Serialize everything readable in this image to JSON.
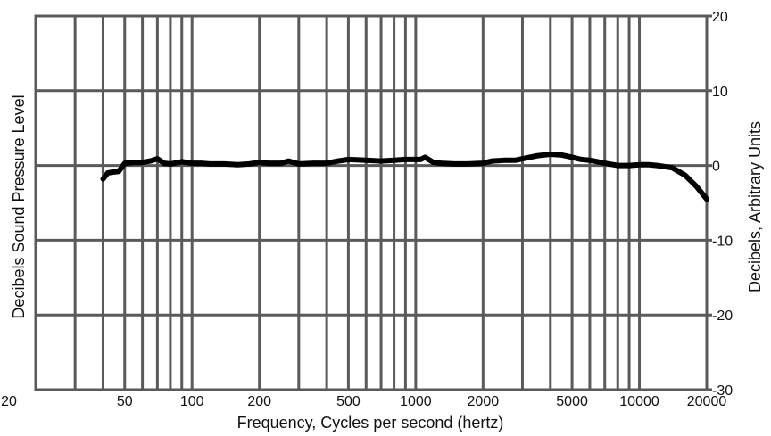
{
  "chart_data": {
    "type": "line",
    "title": "",
    "xlabel": "Frequency,  Cycles per second (hertz)",
    "ylabel_left": "Decibels Sound Pressure Level",
    "ylabel_right": "Decibels, Arbitrary Units",
    "x_scale": "log",
    "xlim": [
      20,
      20000
    ],
    "ylim": [
      -30,
      20
    ],
    "x_ticks": [
      {
        "value": 20,
        "label": "20"
      },
      {
        "value": 50,
        "label": "50"
      },
      {
        "value": 100,
        "label": "100"
      },
      {
        "value": 200,
        "label": "200"
      },
      {
        "value": 500,
        "label": "500"
      },
      {
        "value": 1000,
        "label": "1000"
      },
      {
        "value": 2000,
        "label": "2000"
      },
      {
        "value": 5000,
        "label": "5000"
      },
      {
        "value": 10000,
        "label": "10000"
      },
      {
        "value": 20000,
        "label": "20000"
      }
    ],
    "y_ticks": [
      {
        "value": 20,
        "label": "20"
      },
      {
        "value": 10,
        "label": "10"
      },
      {
        "value": 0,
        "label": "0"
      },
      {
        "value": -10,
        "label": "-10"
      },
      {
        "value": -20,
        "label": "-20"
      },
      {
        "value": -30,
        "label": "-30"
      }
    ],
    "grid": true,
    "grid_x_lines": [
      20,
      30,
      40,
      50,
      60,
      70,
      80,
      90,
      100,
      200,
      300,
      400,
      500,
      600,
      700,
      800,
      900,
      1000,
      2000,
      3000,
      4000,
      5000,
      6000,
      7000,
      8000,
      9000,
      10000,
      20000
    ],
    "grid_y_lines": [
      20,
      10,
      0,
      -10,
      -20,
      -30
    ],
    "series": [
      {
        "color": "#000000",
        "x": [
          40,
          42,
          44,
          47,
          50,
          55,
          60,
          65,
          70,
          75,
          80,
          90,
          100,
          110,
          120,
          140,
          160,
          180,
          200,
          220,
          250,
          270,
          300,
          350,
          400,
          450,
          500,
          600,
          700,
          800,
          900,
          1000,
          1050,
          1100,
          1200,
          1300,
          1500,
          1700,
          2000,
          2200,
          2500,
          2800,
          3000,
          3500,
          4000,
          4500,
          5000,
          5500,
          6000,
          7000,
          8000,
          9000,
          10000,
          11000,
          12000,
          14000,
          16000,
          18000,
          20000
        ],
        "values": [
          -1.8,
          -1.0,
          -0.9,
          -0.8,
          0.3,
          0.4,
          0.4,
          0.6,
          0.9,
          0.3,
          0.2,
          0.5,
          0.3,
          0.3,
          0.2,
          0.2,
          0.1,
          0.2,
          0.4,
          0.3,
          0.3,
          0.6,
          0.2,
          0.3,
          0.3,
          0.6,
          0.8,
          0.7,
          0.6,
          0.7,
          0.8,
          0.8,
          0.8,
          1.1,
          0.4,
          0.3,
          0.2,
          0.2,
          0.3,
          0.6,
          0.7,
          0.7,
          0.9,
          1.3,
          1.5,
          1.4,
          1.1,
          0.8,
          0.7,
          0.3,
          0.0,
          0.0,
          0.1,
          0.1,
          0.0,
          -0.3,
          -1.3,
          -2.8,
          -4.5
        ]
      }
    ]
  }
}
